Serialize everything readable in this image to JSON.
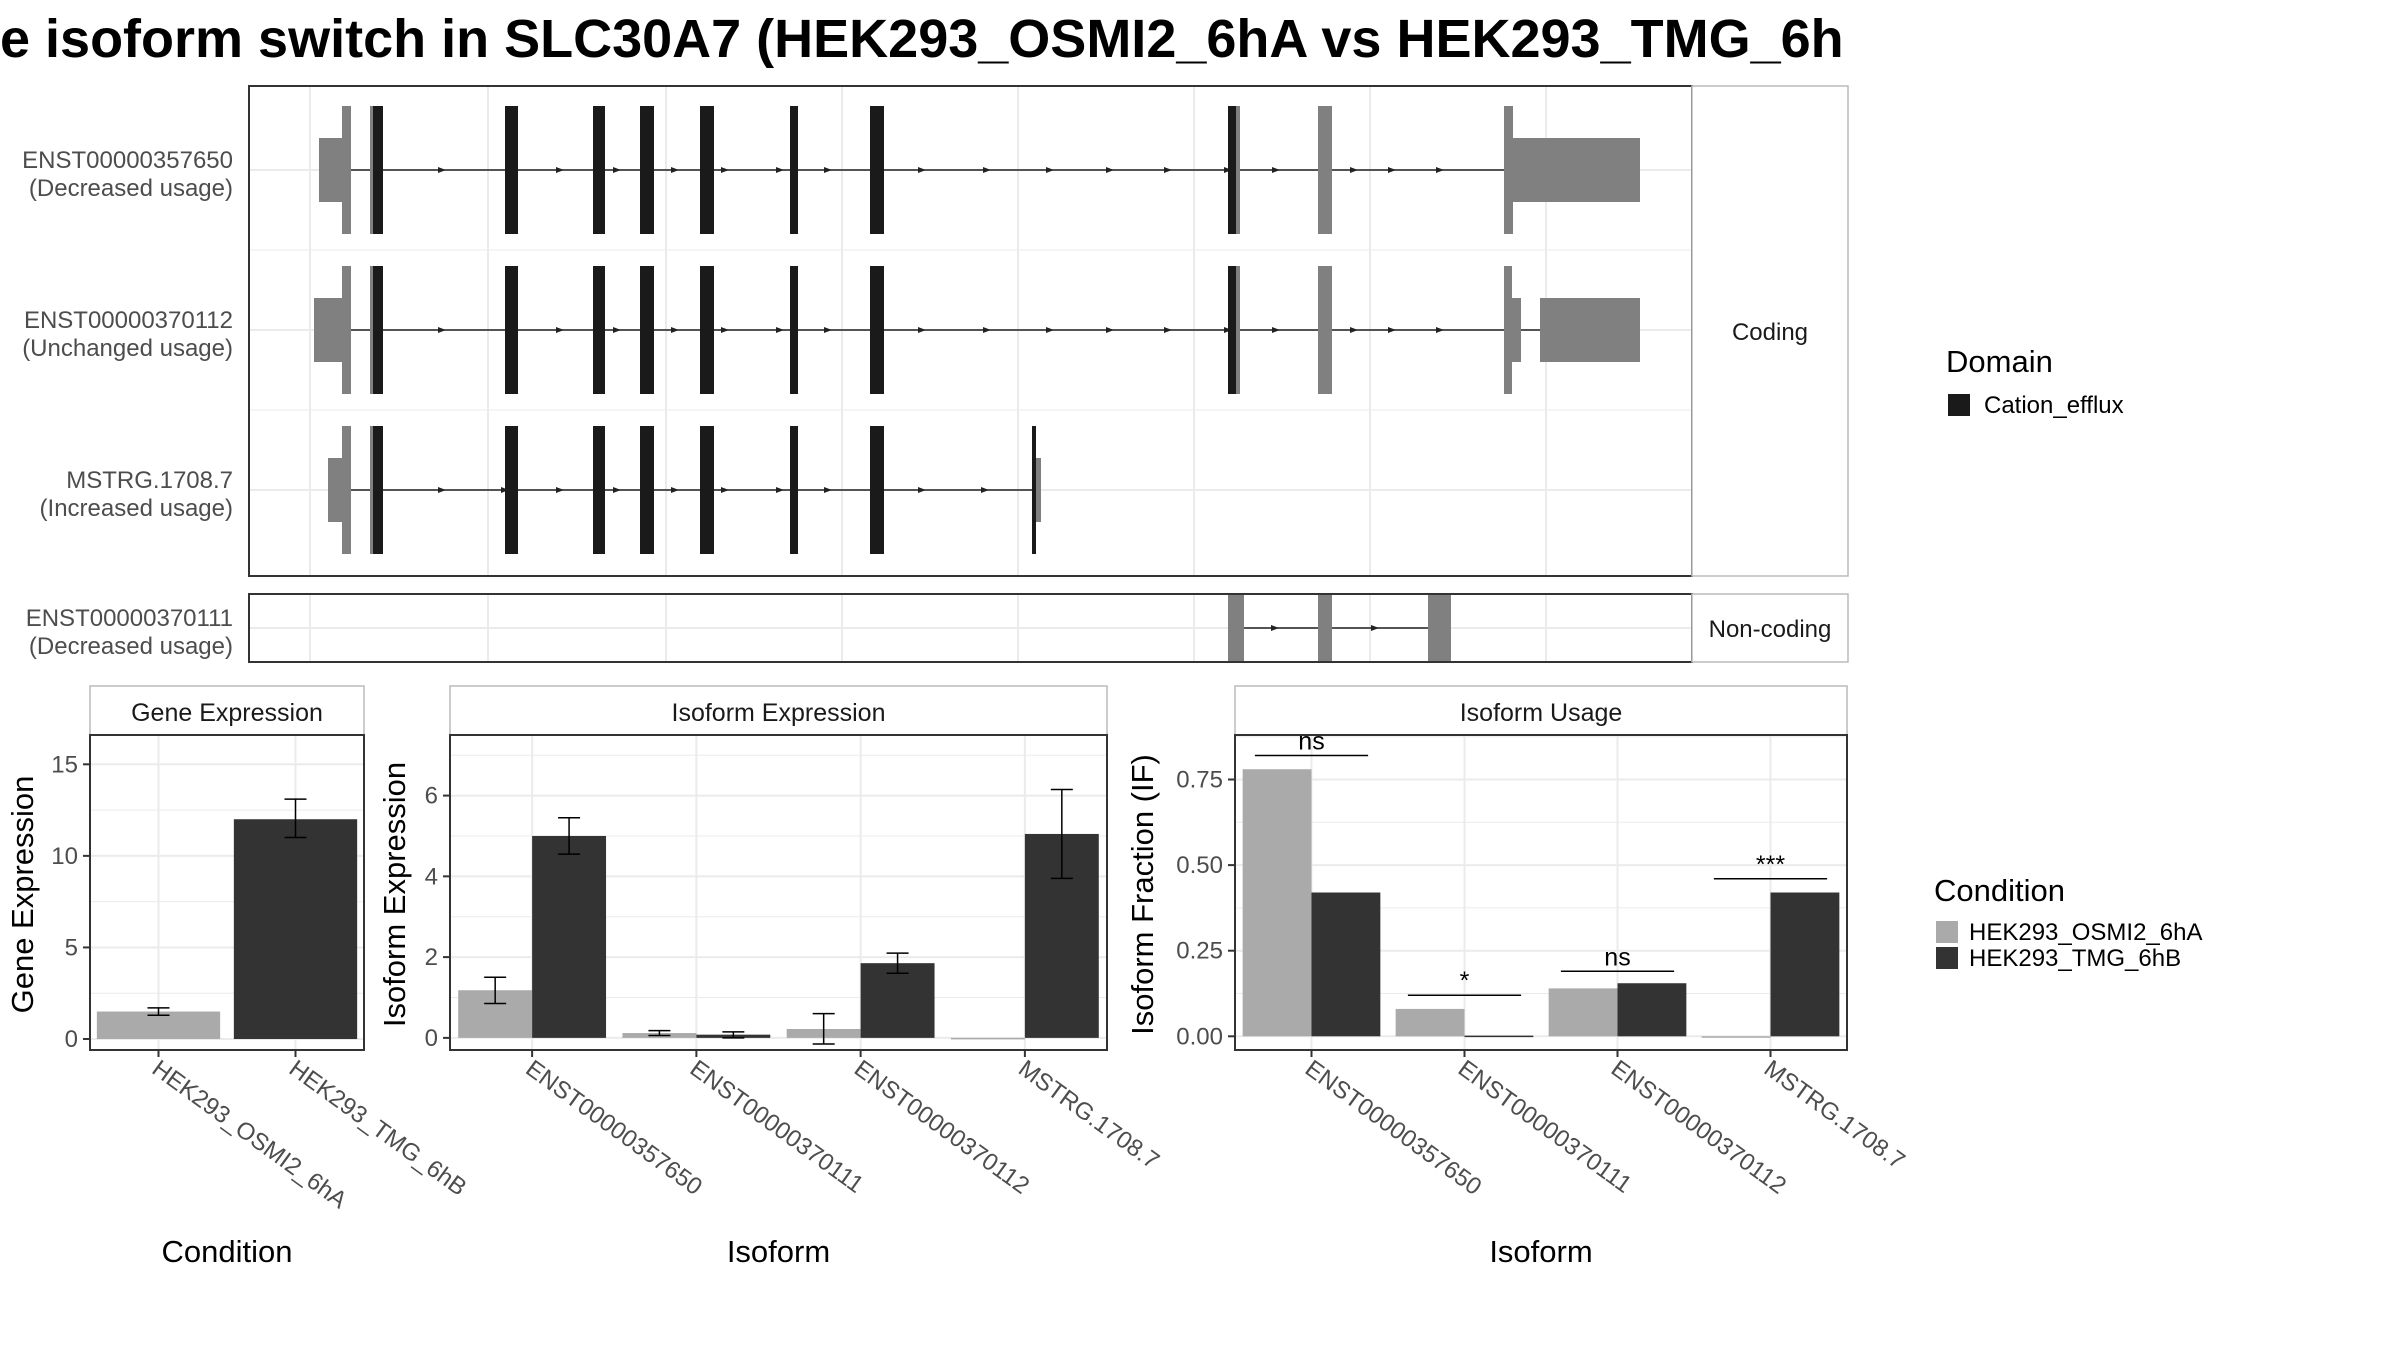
{
  "title": "e isoform switch in SLC30A7 (HEK293_OSMI2_6hA vs HEK293_TMG_6h",
  "colors": {
    "domain": "#1a1a1a",
    "exon": "#808080",
    "condition_a": "#aaaaaa",
    "condition_b": "#333333",
    "grid": "#ebebeb",
    "frame": "#333333",
    "strip_bg": "#ffffff"
  },
  "structure": {
    "facets": [
      "Coding",
      "Non-coding"
    ],
    "transcripts": [
      {
        "id": "ENST00000357650",
        "usage": "(Decreased usage)",
        "facet": "Coding"
      },
      {
        "id": "ENST00000370112",
        "usage": "(Unchanged usage)",
        "facet": "Coding"
      },
      {
        "id": "MSTRG.1708.7",
        "usage": "(Increased usage)",
        "facet": "Coding"
      },
      {
        "id": "ENST00000370111",
        "usage": "(Decreased usage)",
        "facet": "Non-coding"
      }
    ],
    "legend": {
      "title": "Domain",
      "items": [
        {
          "label": "Cation_efflux",
          "color": "#1a1a1a"
        }
      ]
    }
  },
  "chart_data": [
    {
      "type": "bar",
      "title": "Gene Expression",
      "xlabel": "Condition",
      "ylabel": "Gene Expression",
      "categories": [
        "HEK293_OSMI2_6hA",
        "HEK293_TMG_6hB"
      ],
      "values": [
        1.5,
        12.0
      ],
      "error": [
        [
          1.3,
          1.7
        ],
        [
          11.0,
          13.1
        ]
      ],
      "colors": [
        "#aaaaaa",
        "#333333"
      ],
      "ylim": [
        -0.6,
        16.6
      ],
      "yticks": [
        0,
        5,
        10,
        15
      ],
      "grid": true
    },
    {
      "type": "bar",
      "title": "Isoform Expression",
      "xlabel": "Isoform",
      "ylabel": "Isoform Expression",
      "categories": [
        "ENST00000357650",
        "ENST00000370111",
        "ENST00000370112",
        "MSTRG.1708.7"
      ],
      "series": [
        {
          "name": "HEK293_OSMI2_6hA",
          "values": [
            1.18,
            0.12,
            0.22,
            0.0
          ],
          "error": [
            [
              0.85,
              1.5
            ],
            [
              0.06,
              0.18
            ],
            [
              -0.15,
              0.6
            ],
            [
              0.0,
              0.0
            ]
          ]
        },
        {
          "name": "HEK293_TMG_6hB",
          "values": [
            5.0,
            0.08,
            1.85,
            5.05
          ],
          "error": [
            [
              4.55,
              5.45
            ],
            [
              0.0,
              0.15
            ],
            [
              1.6,
              2.1
            ],
            [
              3.95,
              6.15
            ]
          ]
        }
      ],
      "ylim": [
        -0.3,
        7.5
      ],
      "yticks": [
        0,
        2,
        4,
        6
      ],
      "grid": true
    },
    {
      "type": "bar",
      "title": "Isoform Usage",
      "xlabel": "Isoform",
      "ylabel": "Isoform Fraction (IF)",
      "categories": [
        "ENST00000357650",
        "ENST00000370111",
        "ENST00000370112",
        "MSTRG.1708.7"
      ],
      "series": [
        {
          "name": "HEK293_OSMI2_6hA",
          "values": [
            0.78,
            0.08,
            0.14,
            0.0
          ]
        },
        {
          "name": "HEK293_TMG_6hB",
          "values": [
            0.42,
            0.002,
            0.155,
            0.42
          ]
        }
      ],
      "significance": [
        "ns",
        "*",
        "ns",
        "***"
      ],
      "significance_level": [
        0.82,
        0.12,
        0.19,
        0.46
      ],
      "ylim": [
        -0.04,
        0.88
      ],
      "yticks": [
        0.0,
        0.25,
        0.5,
        0.75
      ],
      "ytick_labels": [
        "0.00",
        "0.25",
        "0.50",
        "0.75"
      ],
      "grid": true
    }
  ],
  "condition_legend": {
    "title": "Condition",
    "items": [
      {
        "label": "HEK293_OSMI2_6hA",
        "color": "#aaaaaa"
      },
      {
        "label": "HEK293_TMG_6hB",
        "color": "#333333"
      }
    ]
  }
}
